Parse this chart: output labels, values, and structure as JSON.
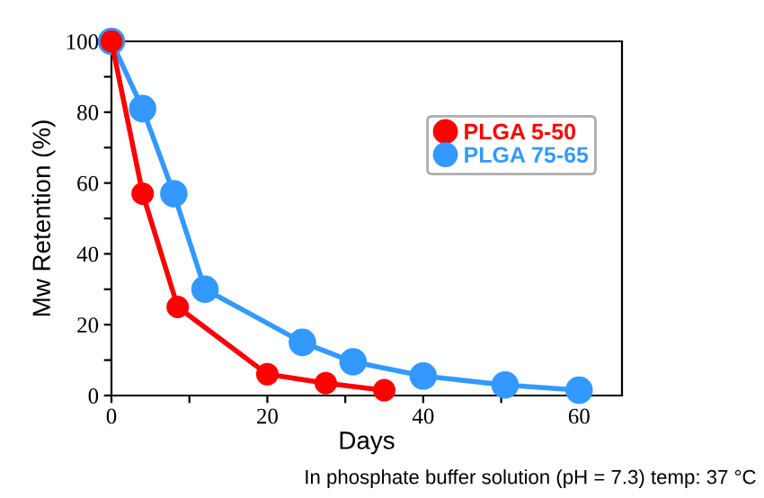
{
  "chart_data": {
    "type": "line",
    "xlabel": "Days",
    "ylabel": "Mw Retention (%)",
    "xlim": [
      0,
      65.5
    ],
    "ylim": [
      0,
      100
    ],
    "xticks": [
      0,
      {
        "value": 10,
        "label": null
      },
      20,
      {
        "value": 30,
        "label": null
      },
      40,
      {
        "value": 50,
        "label": null
      },
      60
    ],
    "yticks": [
      0,
      {
        "value": 10,
        "label": null
      },
      20,
      {
        "value": 30,
        "label": null
      },
      40,
      {
        "value": 50,
        "label": null
      },
      60,
      {
        "value": 70,
        "label": null
      },
      80,
      {
        "value": 90,
        "label": null
      },
      100
    ],
    "marker": "circle",
    "legend": "top right",
    "grid": false,
    "annotations": [
      "In phosphate buffer solution (pH = 7.3) temp: 37 °C"
    ],
    "series": [
      {
        "name": "PLGA 5-50",
        "color": "#ff0000",
        "x": [
          0,
          4,
          8.5,
          20,
          27.5,
          35
        ],
        "values": [
          100,
          57,
          25,
          6,
          3.5,
          1.5
        ]
      },
      {
        "name": "PLGA 75-65",
        "color": "#3399ff",
        "x": [
          0,
          4,
          8,
          12,
          24.5,
          31,
          40,
          50.5,
          60
        ],
        "values": [
          100,
          81,
          57,
          30,
          15,
          9.5,
          5.5,
          3,
          1.5
        ]
      }
    ]
  }
}
